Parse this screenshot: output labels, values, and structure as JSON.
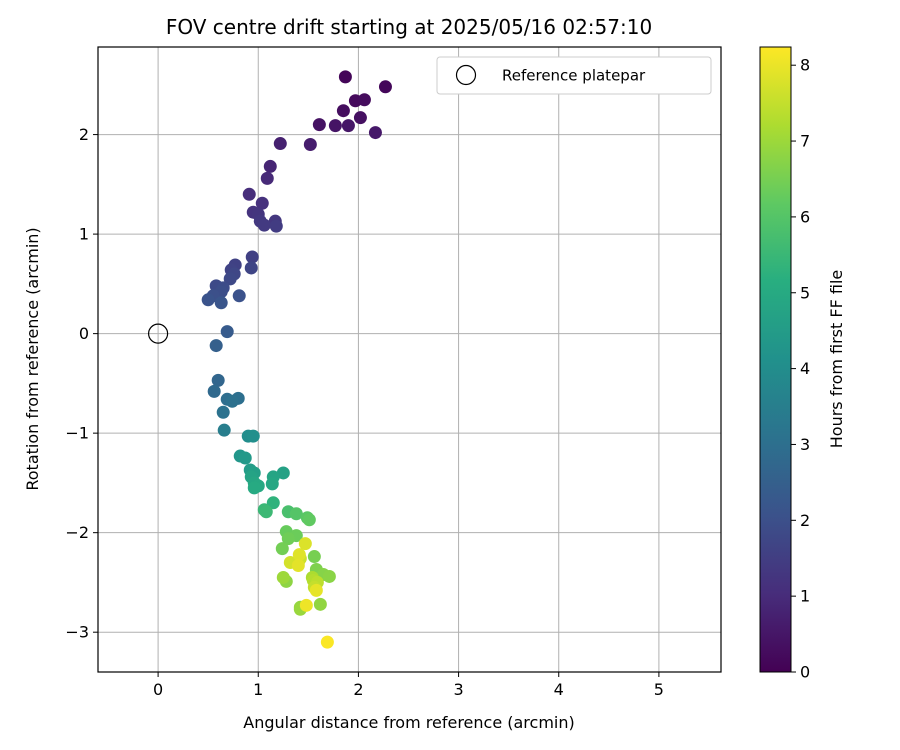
{
  "chart_data": {
    "type": "scatter",
    "title": "FOV centre drift starting at 2025/05/16 02:57:10",
    "xlabel": "Angular distance from reference (arcmin)",
    "ylabel": "Rotation from reference (arcmin)",
    "colorbar_label": "Hours from first FF file",
    "xlim": [
      -0.6,
      5.62
    ],
    "ylim": [
      -3.4,
      2.88
    ],
    "clim": [
      0,
      8.24
    ],
    "xticks": [
      "0",
      "1",
      "2",
      "3",
      "4",
      "5"
    ],
    "yticks": [
      "−3",
      "−2",
      "−1",
      "0",
      "1",
      "2"
    ],
    "colorbar_ticks": [
      "0",
      "1",
      "2",
      "3",
      "4",
      "5",
      "6",
      "7",
      "8"
    ],
    "colormap": "viridis",
    "grid": true,
    "legend": {
      "position": "top-right",
      "label": "Reference platepar"
    },
    "reference_point": {
      "x": 0,
      "y": 0
    },
    "points": [
      [
        1.87,
        2.58,
        0.1
      ],
      [
        2.27,
        2.48,
        0.15
      ],
      [
        1.97,
        2.34,
        0.2
      ],
      [
        2.06,
        2.35,
        0.25
      ],
      [
        1.85,
        2.24,
        0.3
      ],
      [
        2.02,
        2.17,
        0.35
      ],
      [
        1.61,
        2.1,
        0.4
      ],
      [
        1.77,
        2.09,
        0.45
      ],
      [
        1.9,
        2.09,
        0.5
      ],
      [
        2.17,
        2.02,
        0.55
      ],
      [
        1.52,
        1.9,
        0.65
      ],
      [
        1.22,
        1.91,
        0.75
      ],
      [
        1.12,
        1.68,
        0.85
      ],
      [
        1.09,
        1.56,
        0.95
      ],
      [
        0.91,
        1.4,
        1.05
      ],
      [
        1.04,
        1.31,
        1.15
      ],
      [
        0.95,
        1.22,
        1.2
      ],
      [
        1.0,
        1.2,
        1.25
      ],
      [
        1.17,
        1.13,
        1.3
      ],
      [
        1.02,
        1.13,
        1.35
      ],
      [
        1.06,
        1.09,
        1.4
      ],
      [
        1.18,
        1.08,
        1.45
      ],
      [
        0.94,
        0.77,
        1.55
      ],
      [
        0.77,
        0.69,
        1.6
      ],
      [
        0.73,
        0.64,
        1.65
      ],
      [
        0.93,
        0.66,
        1.7
      ],
      [
        0.76,
        0.6,
        1.75
      ],
      [
        0.72,
        0.55,
        1.8
      ],
      [
        0.58,
        0.48,
        1.85
      ],
      [
        0.65,
        0.46,
        1.9
      ],
      [
        0.63,
        0.42,
        1.95
      ],
      [
        0.55,
        0.38,
        2.0
      ],
      [
        0.81,
        0.38,
        2.05
      ],
      [
        0.5,
        0.34,
        2.1
      ],
      [
        0.63,
        0.31,
        2.15
      ],
      [
        0.69,
        0.02,
        2.35
      ],
      [
        0.58,
        -0.12,
        2.5
      ],
      [
        0.6,
        -0.47,
        2.7
      ],
      [
        0.56,
        -0.58,
        2.8
      ],
      [
        0.69,
        -0.66,
        2.95
      ],
      [
        0.8,
        -0.65,
        3.0
      ],
      [
        0.74,
        -0.68,
        3.05
      ],
      [
        0.65,
        -0.79,
        3.1
      ],
      [
        0.66,
        -0.97,
        3.5
      ],
      [
        0.9,
        -1.03,
        4.0
      ],
      [
        0.95,
        -1.03,
        4.05
      ],
      [
        0.82,
        -1.23,
        4.3
      ],
      [
        0.87,
        -1.25,
        4.4
      ],
      [
        0.92,
        -1.37,
        4.5
      ],
      [
        0.96,
        -1.4,
        4.6
      ],
      [
        1.25,
        -1.4,
        4.7
      ],
      [
        0.93,
        -1.44,
        4.75
      ],
      [
        1.15,
        -1.44,
        4.8
      ],
      [
        0.96,
        -1.5,
        4.85
      ],
      [
        1.14,
        -1.51,
        4.9
      ],
      [
        1.0,
        -1.53,
        4.95
      ],
      [
        0.96,
        -1.55,
        5.0
      ],
      [
        1.15,
        -1.7,
        5.3
      ],
      [
        1.06,
        -1.77,
        5.5
      ],
      [
        1.08,
        -1.79,
        5.55
      ],
      [
        1.3,
        -1.79,
        5.8
      ],
      [
        1.38,
        -1.81,
        6.0
      ],
      [
        1.49,
        -1.85,
        6.1
      ],
      [
        1.51,
        -1.87,
        6.2
      ],
      [
        1.28,
        -1.99,
        6.3
      ],
      [
        1.38,
        -2.03,
        6.35
      ],
      [
        1.3,
        -2.06,
        6.4
      ],
      [
        1.24,
        -2.16,
        6.45
      ],
      [
        1.56,
        -2.24,
        6.5
      ],
      [
        1.58,
        -2.37,
        6.6
      ],
      [
        1.65,
        -2.42,
        6.7
      ],
      [
        1.71,
        -2.44,
        6.75
      ],
      [
        1.28,
        -2.49,
        6.8
      ],
      [
        1.62,
        -2.72,
        6.85
      ],
      [
        1.42,
        -2.75,
        6.9
      ],
      [
        1.42,
        -2.77,
        6.95
      ],
      [
        1.25,
        -2.45,
        7.0
      ],
      [
        1.54,
        -2.45,
        7.2
      ],
      [
        1.55,
        -2.48,
        7.3
      ],
      [
        1.59,
        -2.5,
        7.4
      ],
      [
        1.56,
        -2.55,
        7.5
      ],
      [
        1.42,
        -2.26,
        7.6
      ],
      [
        1.4,
        -2.3,
        7.65
      ],
      [
        1.32,
        -2.3,
        7.7
      ],
      [
        1.47,
        -2.11,
        7.8
      ],
      [
        1.41,
        -2.22,
        7.85
      ],
      [
        1.4,
        -2.33,
        7.9
      ],
      [
        1.58,
        -2.58,
        7.95
      ],
      [
        1.48,
        -2.73,
        8.05
      ],
      [
        1.69,
        -3.1,
        8.2
      ]
    ]
  }
}
